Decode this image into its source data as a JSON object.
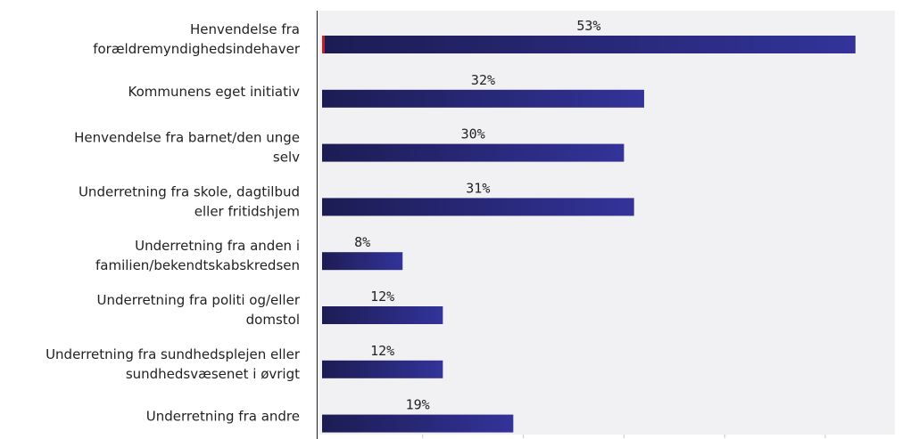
{
  "chart_data": {
    "type": "bar",
    "orientation": "horizontal",
    "categories": [
      [
        "Henvendelse fra",
        "forældremyndighedsindehaver"
      ],
      [
        "Kommunens eget initiativ"
      ],
      [
        "Henvendelse fra barnet/den unge",
        "selv"
      ],
      [
        "Underretning fra skole, dagtilbud",
        "eller fritidshjem"
      ],
      [
        "Underretning fra anden i",
        "familien/bekendtskabskredsen"
      ],
      [
        "Underretning fra politi og/eller",
        "domstol"
      ],
      [
        "Underretning fra sundhedsplejen eller",
        "sundhedsvæsenet i øvrigt"
      ],
      [
        "Underretning fra andre"
      ]
    ],
    "values": [
      53,
      32,
      30,
      31,
      8,
      12,
      12,
      19
    ],
    "value_labels": [
      "53%",
      "32%",
      "30%",
      "31%",
      "8%",
      "12%",
      "12%",
      "19%"
    ],
    "xlim": [
      0,
      60
    ],
    "grid": false,
    "colors": {
      "bar_start": "#1c1c54",
      "bar_end": "#33339a",
      "accent": "#c0202a",
      "plot_bg": "#f1f1f3"
    }
  }
}
